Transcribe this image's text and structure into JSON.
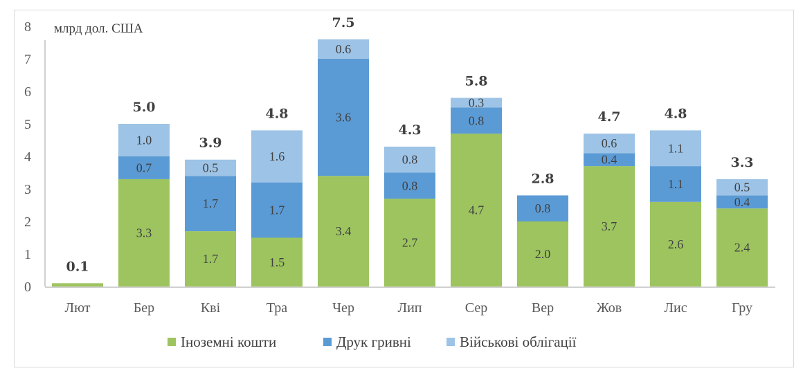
{
  "chart_data": {
    "type": "bar",
    "stacked": true,
    "title": "",
    "unit_label": "млрд дол. США",
    "xlabel": "",
    "ylabel": "",
    "ylim": [
      0,
      8
    ],
    "yticks": [
      0,
      1,
      2,
      3,
      4,
      5,
      6,
      7,
      8
    ],
    "grid": false,
    "legend_position": "bottom",
    "categories": [
      "Лют",
      "Бер",
      "Кві",
      "Тра",
      "Чер",
      "Лип",
      "Сер",
      "Вер",
      "Жов",
      "Лис",
      "Гру"
    ],
    "series": [
      {
        "name": "Іноземні кошти",
        "color": "#9dc45f",
        "values": [
          0.1,
          3.3,
          1.7,
          1.5,
          3.4,
          2.7,
          4.7,
          2.0,
          3.7,
          2.6,
          2.4
        ],
        "show_labels": [
          false,
          true,
          true,
          true,
          true,
          true,
          true,
          true,
          true,
          true,
          true
        ]
      },
      {
        "name": "Друк гривні",
        "color": "#5b9bd5",
        "values": [
          0,
          0.7,
          1.7,
          1.7,
          3.6,
          0.8,
          0.8,
          0.8,
          0.4,
          1.1,
          0.4
        ],
        "show_labels": [
          false,
          true,
          true,
          true,
          true,
          true,
          true,
          true,
          true,
          true,
          true
        ]
      },
      {
        "name": "Військові облігації",
        "color": "#9dc3e6",
        "values": [
          0,
          1.0,
          0.5,
          1.6,
          0.6,
          0.8,
          0.3,
          0,
          0.6,
          1.1,
          0.5
        ],
        "show_labels": [
          false,
          true,
          true,
          true,
          true,
          true,
          true,
          false,
          true,
          true,
          true
        ]
      }
    ],
    "totals": [
      "0.1",
      "5.0",
      "3.9",
      "4.8",
      "7.5",
      "4.3",
      "5.8",
      "2.8",
      "4.7",
      "4.8",
      "3.3"
    ]
  }
}
